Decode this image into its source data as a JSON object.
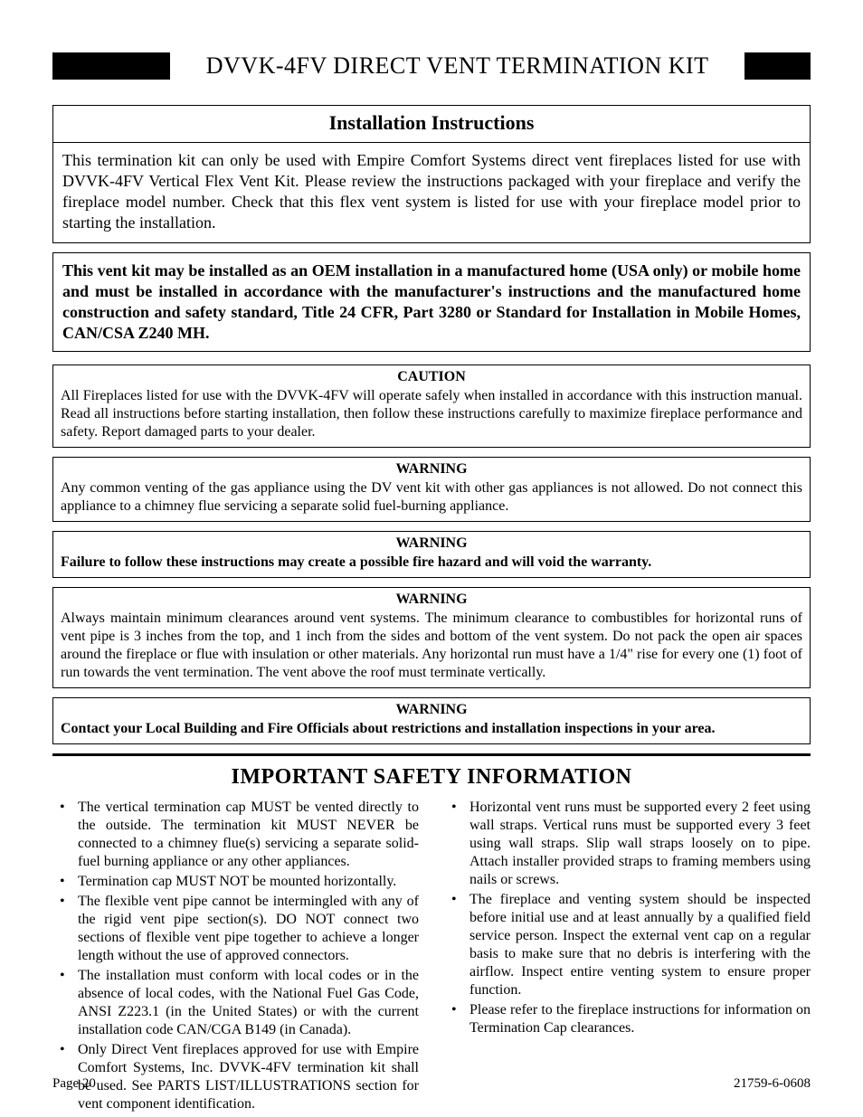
{
  "colors": {
    "text": "#000000",
    "background": "#ffffff",
    "bar": "#000000",
    "border": "#000000"
  },
  "typography": {
    "family": "Times New Roman",
    "title_size_pt": 26,
    "section_header_size_pt": 22,
    "body_size_pt": 18,
    "warning_size_pt": 16,
    "safety_heading_size_pt": 24,
    "footer_size_pt": 15
  },
  "header": {
    "title": "DVVK-4FV DIRECT VENT TERMINATION KIT"
  },
  "instructions": {
    "heading": "Installation Instructions",
    "body": "This termination kit can only be used with Empire Comfort Systems direct vent fireplaces listed for use with DVVK-4FV Vertical Flex Vent Kit. Please review the instructions packaged with your fireplace and verify the fireplace model number. Check that this flex vent system is listed for use with your fireplace model prior to starting the installation."
  },
  "oem_notice": "This vent kit may be installed as an OEM installation in a manufactured home (USA only) or mobile home and must be installed in accordance with the manufacturer's instructions and the manufactured home construction and safety standard, Title 24 CFR, Part 3280 or Standard for Installation in Mobile Homes, CAN/CSA Z240 MH.",
  "notices": [
    {
      "title": "CAUTION",
      "bold": false,
      "body": "All Fireplaces listed for use with the DVVK-4FV will operate safely when installed in accordance with this instruction manual. Read all instructions before starting installation, then follow these instructions carefully to maximize fireplace performance and safety. Report damaged parts to your dealer."
    },
    {
      "title": "WARNING",
      "bold": false,
      "body": "Any common venting of the gas appliance using the DV vent kit with other gas appliances is not allowed. Do not connect this appliance to a chimney flue servicing a separate solid fuel-burning appliance."
    },
    {
      "title": "WARNING",
      "bold": true,
      "body": "Failure to follow these instructions may create a possible fire hazard and will void the warranty."
    },
    {
      "title": "WARNING",
      "bold": false,
      "body": "Always maintain minimum clearances around vent systems. The minimum clearance to combustibles for horizontal runs of vent pipe is 3 inches from the top, and 1 inch from the sides and bottom of the vent system. Do not pack the open air spaces around the fireplace or flue with insulation or other materials. Any horizontal run must have a 1/4\" rise for every one (1) foot of run towards the vent termination. The vent above the roof must terminate vertically."
    },
    {
      "title": "WARNING",
      "bold": true,
      "body": "Contact your Local Building and Fire Officials about restrictions and installation inspections in your area."
    }
  ],
  "safety": {
    "heading": "IMPORTANT SAFETY INFORMATION",
    "left": [
      "The vertical termination cap MUST be vented directly to the outside. The termination kit MUST NEVER be connected to a chimney flue(s) servicing a separate solid-fuel burning appliance or any other appliances.",
      "Termination cap MUST NOT be mounted horizontally.",
      "The flexible vent pipe cannot be intermingled with any of the rigid vent pipe section(s). DO NOT connect two sections of flexible vent pipe together to achieve a longer length without the use of approved connectors.",
      "The installation must conform with local codes or in the absence of local codes, with the National Fuel Gas Code, ANSI Z223.1 (in the United States) or with the current installation code CAN/CGA B149 (in Canada).",
      "Only Direct Vent fireplaces approved for use with Empire Comfort Systems, Inc. DVVK-4FV termination kit shall be used. See PARTS LIST/ILLUSTRATIONS section for vent component identification."
    ],
    "right": [
      "Horizontal vent runs must be supported every 2 feet using wall straps. Vertical runs must be supported every 3 feet using wall straps. Slip wall straps loosely on to pipe. Attach installer provided straps to framing members using nails or screws.",
      "The fireplace and venting system should be inspected before initial use and at least annually by a qualified field service person. Inspect the external vent cap on a regular basis to make sure that no debris is interfering with the airflow. Inspect entire venting system to ensure proper function.",
      "Please refer to the fireplace instructions for information on Termination Cap clearances."
    ]
  },
  "footer": {
    "left": "Page 20",
    "right": "21759-6-0608"
  }
}
